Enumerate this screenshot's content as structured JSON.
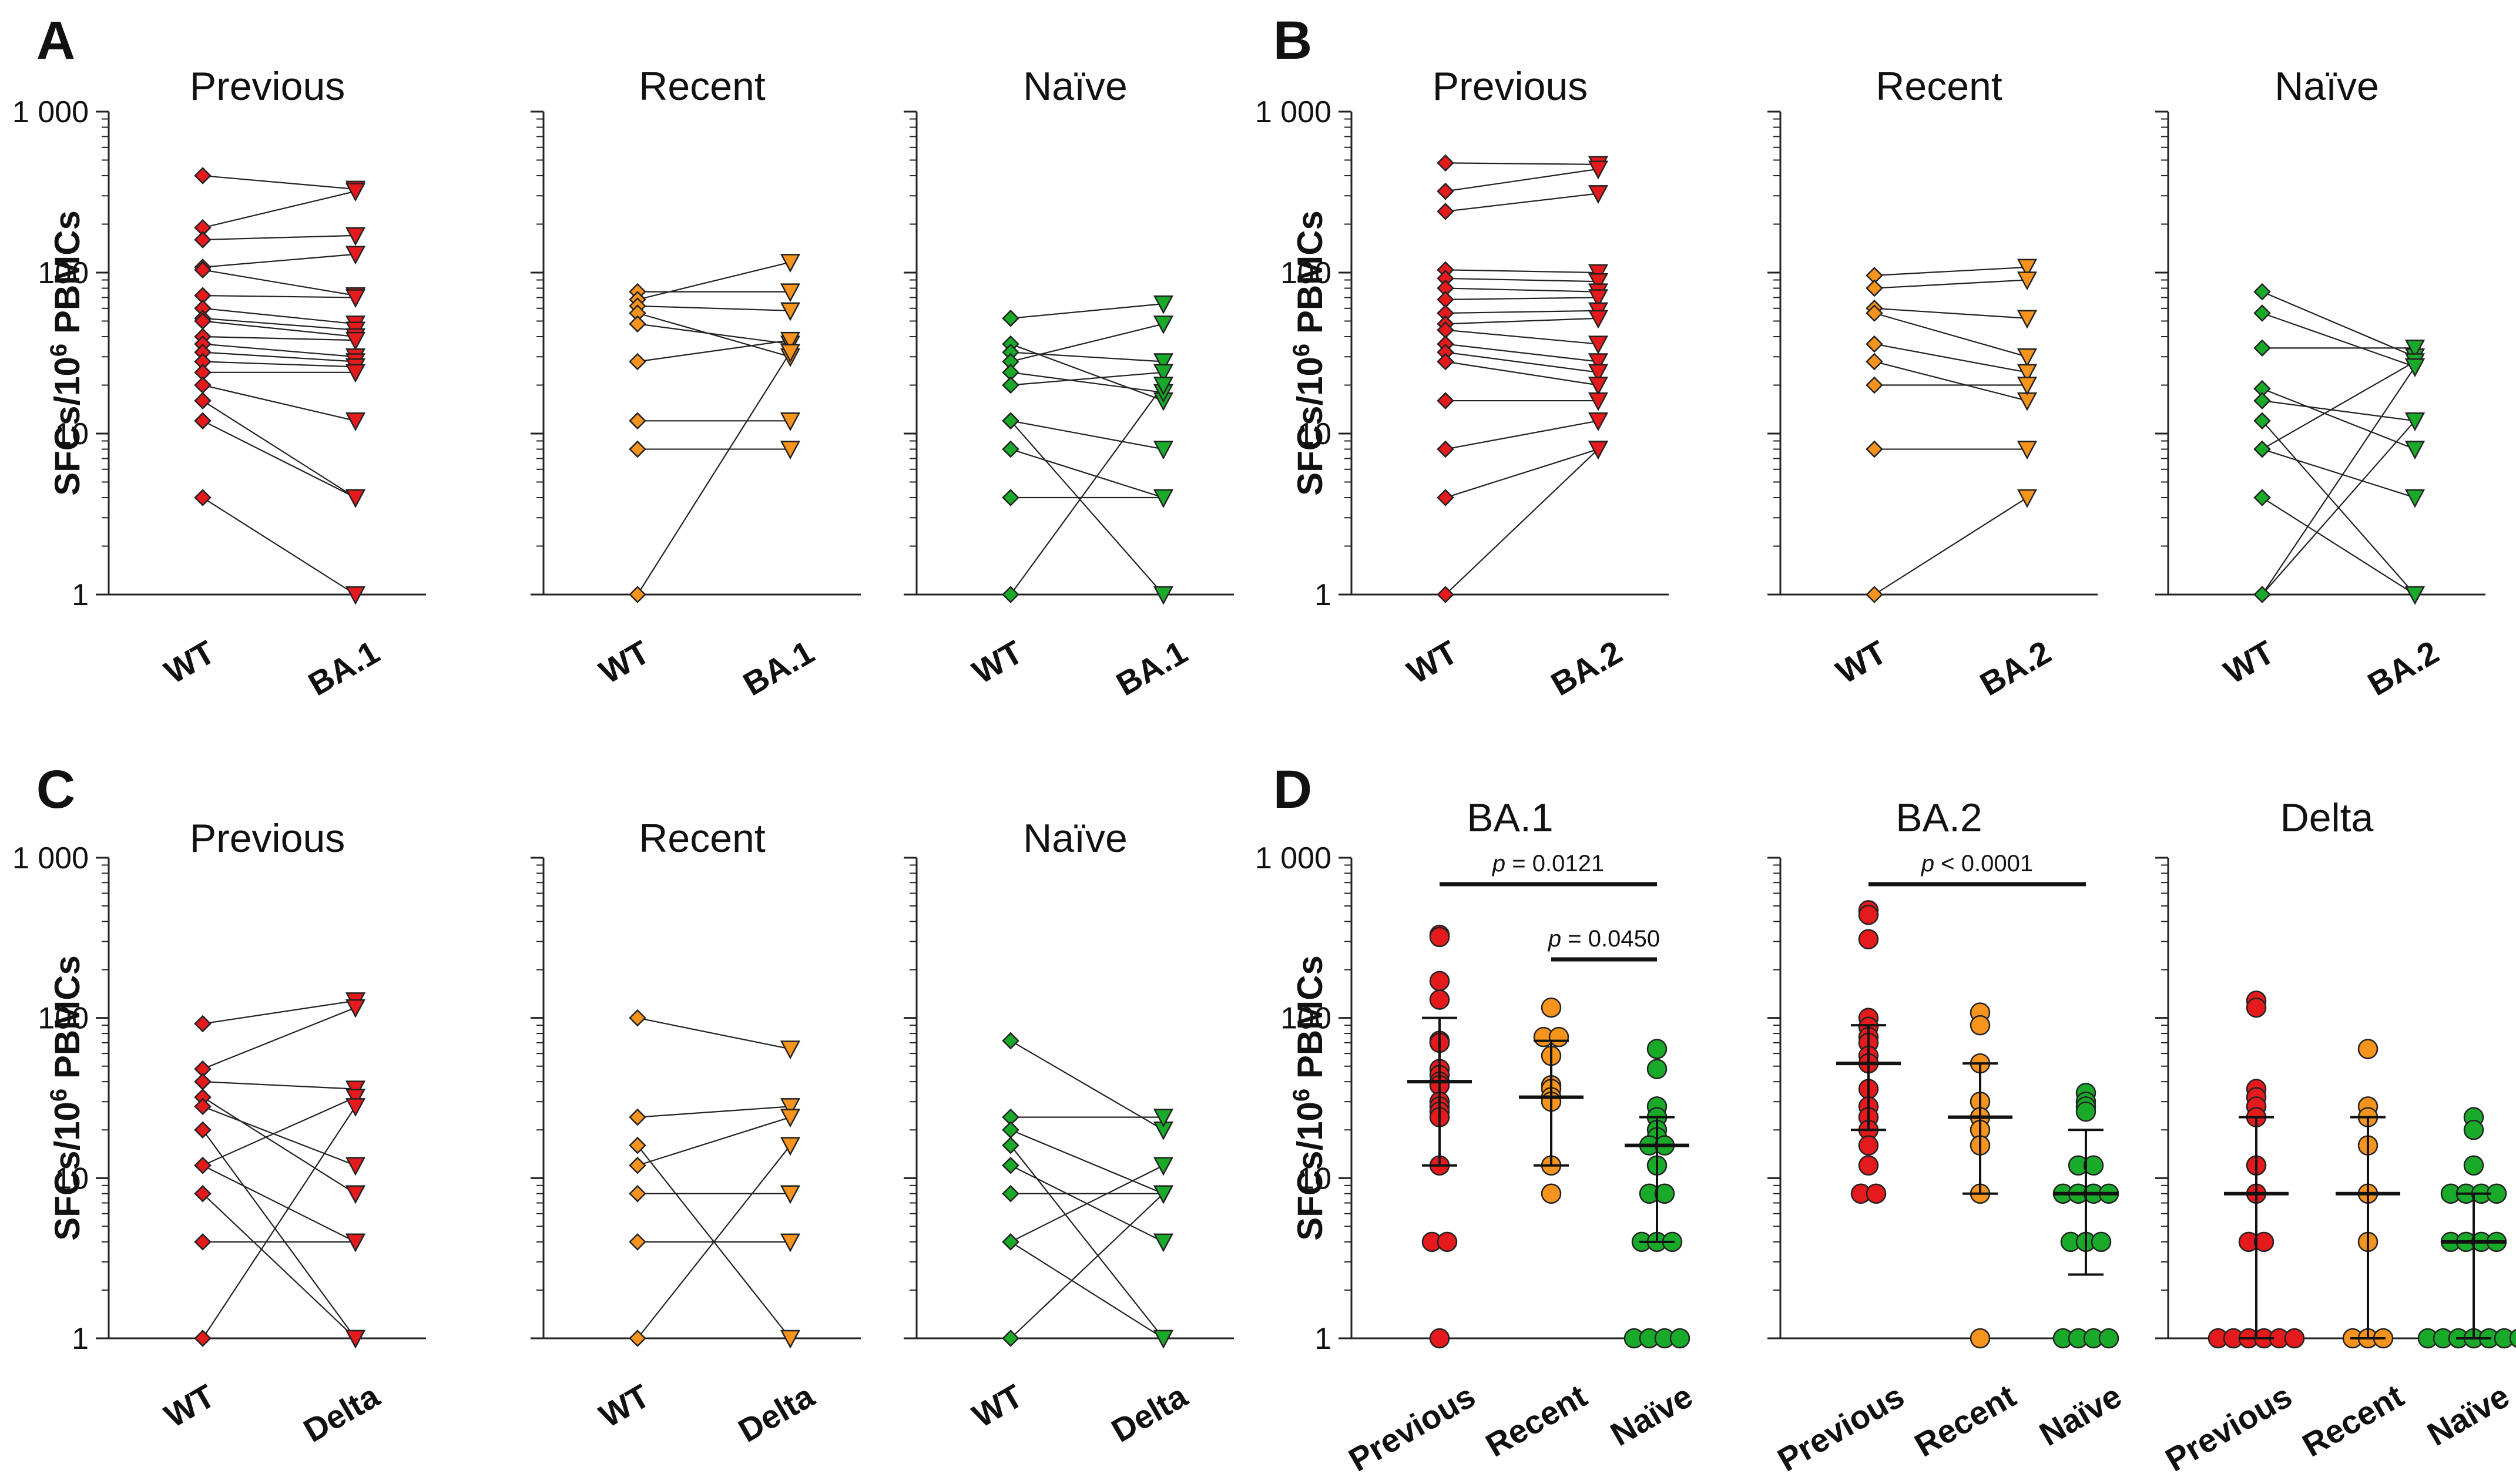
{
  "chart_data": [
    {
      "panel": "A",
      "type": "scatter",
      "subtype": "paired",
      "ylabel": "SFCs/10^6 PBMCs",
      "yscale": "log",
      "ylim": [
        1,
        1000
      ],
      "yticks": [
        "1",
        "10",
        "100",
        "1 000"
      ],
      "categories": [
        "WT",
        "BA.1"
      ],
      "groups": [
        {
          "name": "Previous",
          "color": "#e41a1c",
          "wt": [
            400,
            190,
            160,
            108,
            104,
            72,
            60,
            52,
            50,
            40,
            36,
            32,
            28,
            24,
            20,
            16,
            12,
            4
          ],
          "var": [
            330,
            320,
            170,
            130,
            72,
            70,
            48,
            44,
            40,
            38,
            30,
            28,
            26,
            24,
            12,
            4,
            4,
            1
          ]
        },
        {
          "name": "Recent",
          "color": "#f7941d",
          "wt": [
            76,
            68,
            62,
            56,
            48,
            28,
            12,
            8,
            1
          ],
          "var": [
            76,
            116,
            58,
            30,
            36,
            38,
            12,
            8,
            32
          ]
        },
        {
          "name": "Naïve",
          "color": "#1aaa2a",
          "wt": [
            52,
            36,
            32,
            28,
            24,
            20,
            12,
            12,
            8,
            4,
            1
          ],
          "var": [
            64,
            16,
            28,
            48,
            18,
            24,
            1,
            8,
            4,
            4,
            20
          ]
        }
      ]
    },
    {
      "panel": "B",
      "type": "scatter",
      "subtype": "paired",
      "ylabel": "SFCs/10^6 PBMCs",
      "yscale": "log",
      "ylim": [
        1,
        1000
      ],
      "yticks": [
        "1",
        "10",
        "100",
        "1 000"
      ],
      "categories": [
        "WT",
        "BA.2"
      ],
      "groups": [
        {
          "name": "Previous",
          "color": "#e41a1c",
          "wt": [
            480,
            320,
            240,
            104,
            92,
            80,
            68,
            56,
            48,
            44,
            36,
            32,
            28,
            16,
            8,
            4,
            1
          ],
          "var": [
            470,
            440,
            310,
            100,
            88,
            76,
            70,
            58,
            52,
            36,
            28,
            24,
            20,
            16,
            12,
            8,
            8
          ]
        },
        {
          "name": "Recent",
          "color": "#f7941d",
          "wt": [
            96,
            80,
            60,
            56,
            36,
            28,
            20,
            8,
            1
          ],
          "var": [
            108,
            90,
            52,
            30,
            24,
            16,
            20,
            8,
            4
          ]
        },
        {
          "name": "Naïve",
          "color": "#1aaa2a",
          "wt": [
            76,
            56,
            34,
            19,
            16,
            12,
            8,
            8,
            4,
            1,
            1
          ],
          "var": [
            30,
            26,
            34,
            8,
            12,
            1,
            28,
            4,
            1,
            26,
            12
          ]
        }
      ]
    },
    {
      "panel": "C",
      "type": "scatter",
      "subtype": "paired",
      "ylabel": "SFCs/10^6 PBMCs",
      "yscale": "log",
      "ylim": [
        1,
        1000
      ],
      "yticks": [
        "1",
        "10",
        "100",
        "1 000"
      ],
      "categories": [
        "WT",
        "Delta"
      ],
      "groups": [
        {
          "name": "Previous",
          "color": "#e41a1c",
          "wt": [
            92,
            48,
            40,
            32,
            28,
            20,
            12,
            12,
            8,
            4,
            1
          ],
          "var": [
            128,
            116,
            36,
            8,
            12,
            1,
            32,
            4,
            1,
            4,
            28
          ]
        },
        {
          "name": "Recent",
          "color": "#f7941d",
          "wt": [
            100,
            24,
            16,
            12,
            8,
            4,
            1
          ],
          "var": [
            64,
            28,
            1,
            24,
            8,
            4,
            16
          ]
        },
        {
          "name": "Naïve",
          "color": "#1aaa2a",
          "wt": [
            72,
            24,
            20,
            16,
            12,
            8,
            4,
            4,
            1
          ],
          "var": [
            20,
            24,
            8,
            1,
            4,
            8,
            12,
            1,
            8
          ]
        }
      ]
    },
    {
      "panel": "D",
      "type": "scatter",
      "subtype": "dot-plot with median and IQR",
      "ylabel": "SFCs/10^6 PBMCs",
      "yscale": "log",
      "ylim": [
        1,
        1000
      ],
      "yticks": [
        "1",
        "10",
        "100",
        "1 000"
      ],
      "subpanels": [
        {
          "title": "BA.1",
          "groups": [
            {
              "name": "Previous",
              "color": "#e41a1c",
              "median": 40,
              "q1": 12,
              "q3": 100,
              "values": [
                330,
                320,
                170,
                130,
                72,
                70,
                48,
                44,
                40,
                38,
                30,
                28,
                26,
                24,
                12,
                4,
                4,
                1
              ]
            },
            {
              "name": "Recent",
              "color": "#f7941d",
              "median": 32,
              "q1": 12,
              "q3": 72,
              "values": [
                116,
                76,
                76,
                58,
                38,
                36,
                32,
                30,
                12,
                8
              ]
            },
            {
              "name": "Naïve",
              "color": "#1aaa2a",
              "median": 16,
              "q1": 4,
              "q3": 24,
              "values": [
                64,
                48,
                28,
                24,
                20,
                18,
                16,
                16,
                12,
                8,
                8,
                4,
                4,
                4,
                1,
                1,
                1,
                1
              ]
            }
          ],
          "comparisons": [
            {
              "groups": [
                "Previous",
                "Naïve"
              ],
              "p_prefix": "p",
              "p_text": " = 0.0121"
            },
            {
              "groups": [
                "Recent",
                "Naïve"
              ],
              "p_prefix": "p",
              "p_text": " = 0.0450"
            }
          ]
        },
        {
          "title": "BA.2",
          "groups": [
            {
              "name": "Previous",
              "color": "#e41a1c",
              "median": 52,
              "q1": 20,
              "q3": 90,
              "values": [
                470,
                440,
                310,
                100,
                88,
                76,
                70,
                58,
                52,
                36,
                28,
                24,
                20,
                16,
                12,
                8,
                8
              ]
            },
            {
              "name": "Recent",
              "color": "#f7941d",
              "median": 24,
              "q1": 8,
              "q3": 52,
              "values": [
                108,
                90,
                52,
                30,
                24,
                20,
                16,
                8,
                1
              ]
            },
            {
              "name": "Naïve",
              "color": "#1aaa2a",
              "median": 8,
              "q1": 2.5,
              "q3": 20,
              "values": [
                34,
                30,
                28,
                26,
                12,
                12,
                8,
                8,
                8,
                8,
                4,
                4,
                4,
                1,
                1,
                1,
                1
              ]
            }
          ],
          "comparisons": [
            {
              "groups": [
                "Previous",
                "Naïve"
              ],
              "p_prefix": "p",
              "p_text": " < 0.0001"
            }
          ]
        },
        {
          "title": "Delta",
          "groups": [
            {
              "name": "Previous",
              "color": "#e41a1c",
              "median": 8,
              "q1": 1,
              "q3": 24,
              "values": [
                128,
                116,
                36,
                32,
                28,
                24,
                12,
                8,
                4,
                4,
                1,
                1,
                1,
                1,
                1,
                1
              ]
            },
            {
              "name": "Recent",
              "color": "#f7941d",
              "median": 8,
              "q1": 1,
              "q3": 24,
              "values": [
                64,
                28,
                24,
                16,
                8,
                4,
                1,
                1,
                1
              ]
            },
            {
              "name": "Naïve",
              "color": "#1aaa2a",
              "median": 4,
              "q1": 1,
              "q3": 8,
              "values": [
                24,
                20,
                12,
                8,
                8,
                8,
                8,
                4,
                4,
                4,
                4,
                1,
                1,
                1,
                1,
                1,
                1,
                1
              ]
            }
          ],
          "comparisons": []
        }
      ]
    }
  ]
}
